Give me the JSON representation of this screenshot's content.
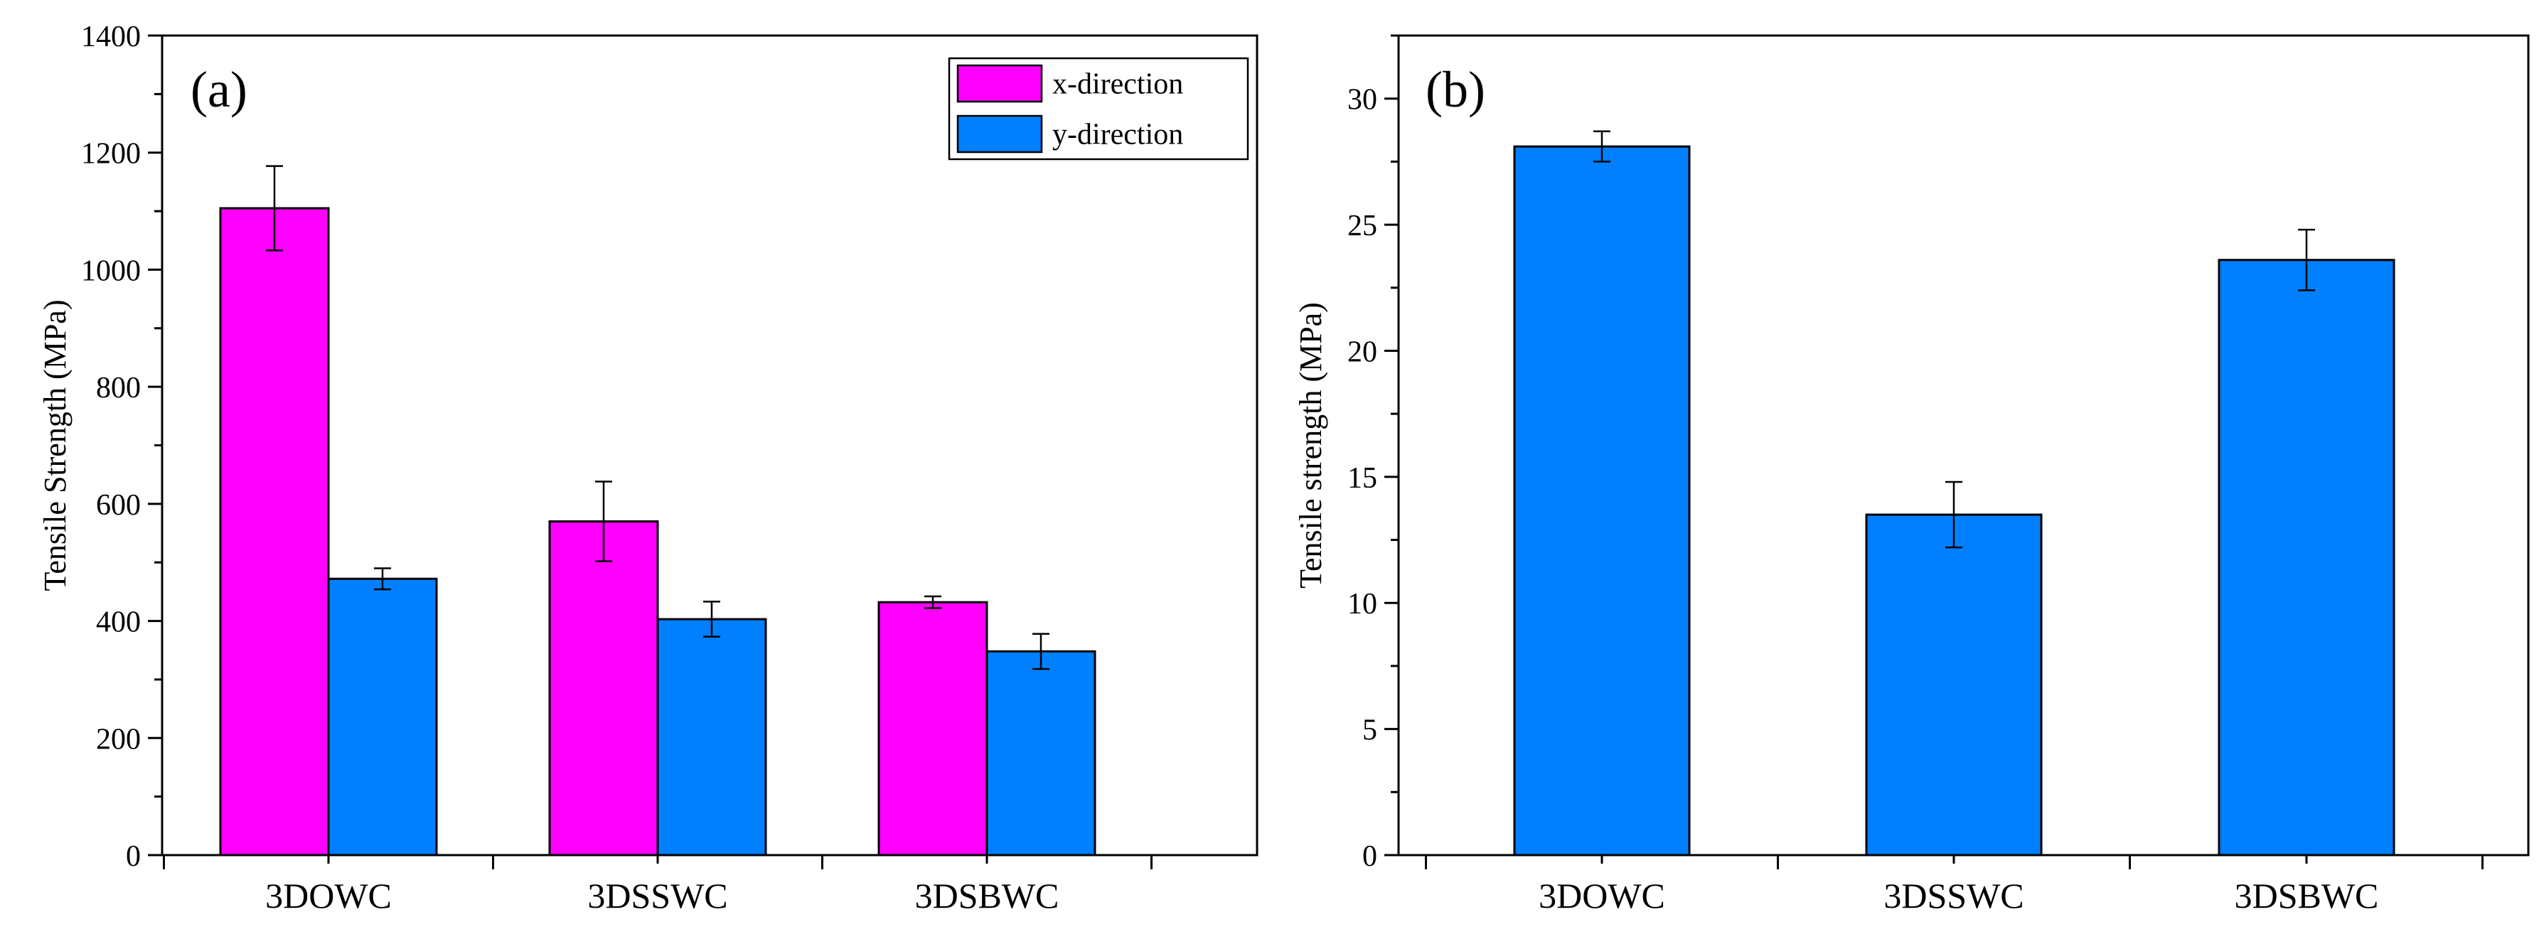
{
  "colors": {
    "x_direction": "#ff00ff",
    "y_direction": "#0080ff",
    "axis": "#000000"
  },
  "chart_data": [
    {
      "type": "bar",
      "panel_label": "(a)",
      "title": "",
      "xlabel": "",
      "ylabel": "Tensile Strength (MPa)",
      "categories": [
        "3DOWC",
        "3DSSWC",
        "3DSBWC"
      ],
      "ylim": [
        0,
        1400
      ],
      "y_ticks": [
        0,
        200,
        400,
        600,
        800,
        1000,
        1200,
        1400
      ],
      "y_tick_labels": [
        "0",
        "200",
        "400",
        "600",
        "800",
        "1000",
        "1200",
        "1400"
      ],
      "series": [
        {
          "name": "x-direction",
          "values": [
            1105,
            570,
            432
          ],
          "errors": [
            72,
            68,
            10
          ]
        },
        {
          "name": "y-direction",
          "values": [
            472,
            403,
            348
          ],
          "errors": [
            18,
            30,
            30
          ]
        }
      ],
      "legend": {
        "position": "top-right",
        "entries": [
          "x-direction",
          "y-direction"
        ]
      },
      "grid": false
    },
    {
      "type": "bar",
      "panel_label": "(b)",
      "title": "",
      "xlabel": "",
      "ylabel": "Tensile strength (MPa)",
      "categories": [
        "3DOWC",
        "3DSSWC",
        "3DSBWC"
      ],
      "ylim": [
        0,
        32.5
      ],
      "y_ticks": [
        0,
        5,
        10,
        15,
        20,
        25,
        30
      ],
      "y_tick_labels": [
        "0",
        "5",
        "10",
        "15",
        "20",
        "25",
        "30"
      ],
      "series": [
        {
          "name": "Tensile strength",
          "values": [
            28.1,
            13.5,
            23.6
          ],
          "errors": [
            0.6,
            1.3,
            1.2
          ]
        }
      ],
      "grid": false
    }
  ]
}
